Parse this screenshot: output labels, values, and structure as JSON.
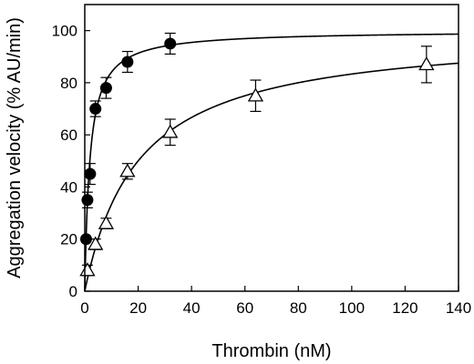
{
  "chart_data": {
    "type": "scatter",
    "title": "",
    "xlabel": "Thrombin (nM)",
    "ylabel": "Aggregation velocity (% AU/min)",
    "xlim": [
      0,
      140
    ],
    "ylim": [
      0,
      110
    ],
    "xticks": [
      0,
      20,
      40,
      60,
      80,
      100,
      120,
      140
    ],
    "yticks": [
      0,
      20,
      40,
      60,
      80,
      100
    ],
    "grid": false,
    "legend": "none",
    "series": [
      {
        "marker": "filled-circle",
        "points": [
          {
            "x": 0.5,
            "y": 20,
            "err": 0
          },
          {
            "x": 1,
            "y": 35,
            "err": 3
          },
          {
            "x": 2,
            "y": 45,
            "err": 4
          },
          {
            "x": 4,
            "y": 70,
            "err": 3
          },
          {
            "x": 8,
            "y": 78,
            "err": 4
          },
          {
            "x": 16,
            "y": 88,
            "err": 4
          },
          {
            "x": 32,
            "y": 95,
            "err": 4
          }
        ],
        "fit": {
          "model": "hyperbolic",
          "vmax": 100,
          "k": 1.9
        }
      },
      {
        "marker": "open-triangle",
        "points": [
          {
            "x": 1,
            "y": 8,
            "err": 2
          },
          {
            "x": 4,
            "y": 18,
            "err": 2
          },
          {
            "x": 8,
            "y": 26,
            "err": 2
          },
          {
            "x": 16,
            "y": 46,
            "err": 3
          },
          {
            "x": 32,
            "y": 61,
            "err": 5
          },
          {
            "x": 64,
            "y": 75,
            "err": 6
          },
          {
            "x": 128,
            "y": 87,
            "err": 7
          }
        ],
        "fit": {
          "model": "hyperbolic",
          "vmax": 100,
          "k": 20
        }
      }
    ]
  }
}
